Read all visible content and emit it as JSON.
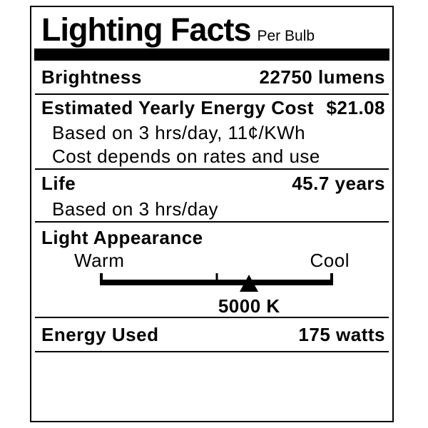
{
  "label": {
    "title": "Lighting Facts",
    "subtitle": "Per Bulb",
    "brightness": {
      "name": "Brightness",
      "value": "22750 lumens"
    },
    "energy_cost": {
      "name": "Estimated Yearly Energy Cost",
      "value": "$21.08",
      "note1": "Based on 3 hrs/day, 11¢/KWh",
      "note2": "Cost depends on rates and use"
    },
    "life": {
      "name": "Life",
      "value": "45.7 years",
      "note": "Based on 3 hrs/day"
    },
    "light_appearance": {
      "name": "Light Appearance",
      "warm_label": "Warm",
      "cool_label": "Cool",
      "kelvin": "5000 K",
      "marker_position_pct": 64
    },
    "energy_used": {
      "name": "Energy Used",
      "value": "175 watts"
    },
    "colors": {
      "ink": "#000000",
      "background": "#ffffff"
    }
  }
}
